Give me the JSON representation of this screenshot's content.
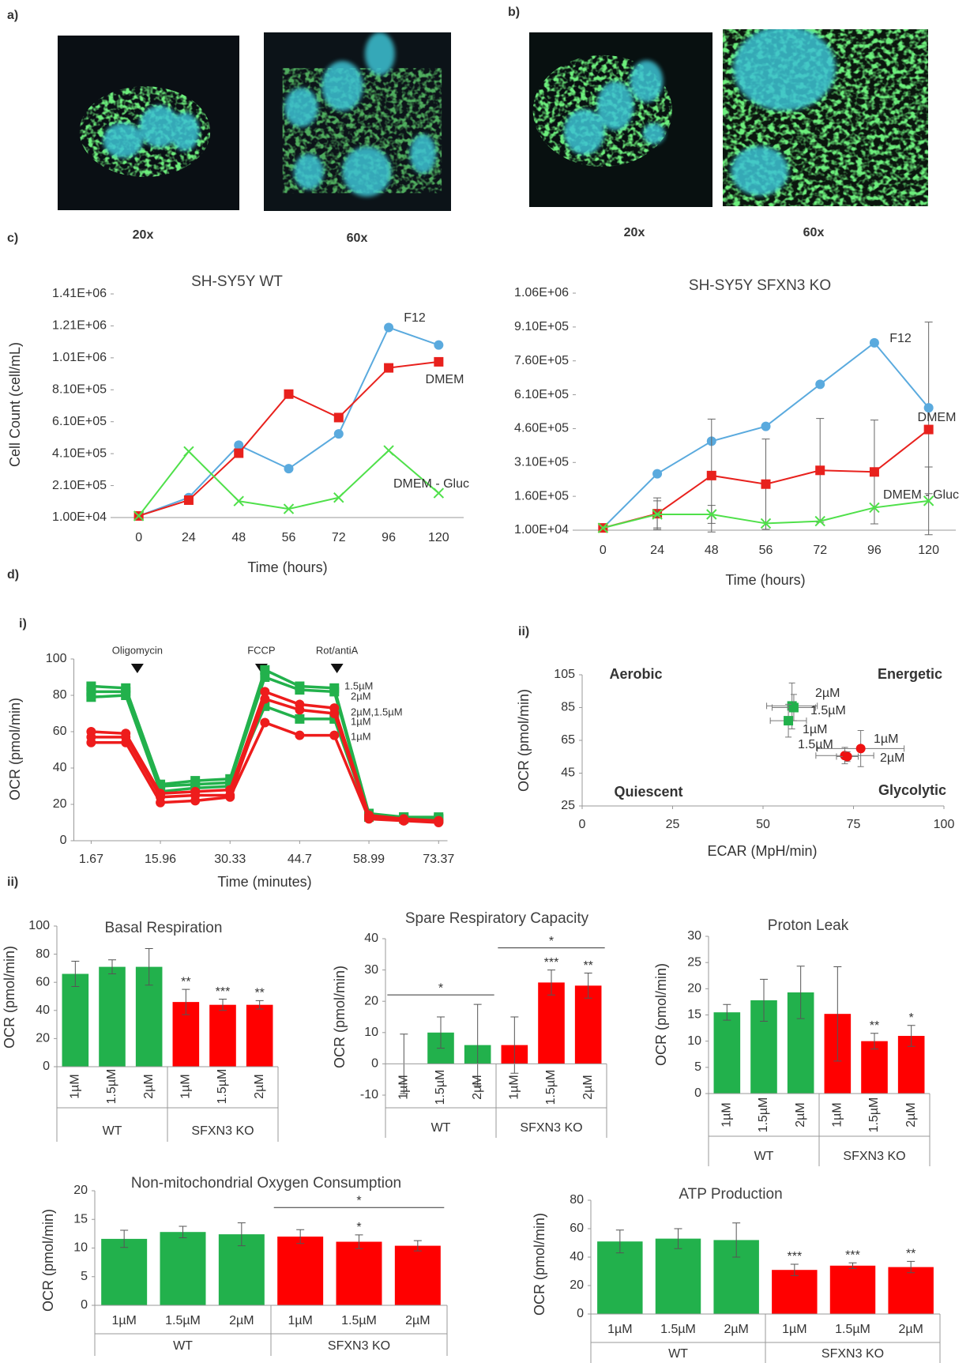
{
  "figure": {
    "panel_labels": [
      "a)",
      "b)",
      "c)",
      "d)",
      "i)",
      "ii)",
      "ii)"
    ],
    "magnifications": [
      "20x",
      "60x",
      "20x",
      "60x"
    ]
  },
  "chart_data": [
    {
      "type": "line",
      "title": "SH-SY5Y WT",
      "xlabel": "Time (hours)",
      "ylabel": "Cell Count (cell/mL)",
      "categories": [
        "0",
        "24",
        "48",
        "56",
        "72",
        "96",
        "120"
      ],
      "ylim": [
        10000,
        1410000
      ],
      "yticks": [
        {
          "value": 10000,
          "label": "1.00E+04"
        },
        {
          "value": 210000,
          "label": "2.10E+05"
        },
        {
          "value": 410000,
          "label": "4.10E+05"
        },
        {
          "value": 610000,
          "label": "6.10E+05"
        },
        {
          "value": 810000,
          "label": "8.10E+05"
        },
        {
          "value": 1010000,
          "label": "1.01E+06"
        },
        {
          "value": 1210000,
          "label": "1.21E+06"
        },
        {
          "value": 1410000,
          "label": "1.41E+06"
        }
      ],
      "series": [
        {
          "name": "F12",
          "color": "#5aaade",
          "marker": "circle",
          "values": [
            20000,
            135000,
            463000,
            316000,
            534000,
            1200000,
            1090000
          ]
        },
        {
          "name": "DMEM",
          "color": "#e8211d",
          "marker": "square",
          "values": [
            20000,
            119000,
            413000,
            783000,
            636000,
            947000,
            985000
          ]
        },
        {
          "name": "DMEM - Gluc",
          "color": "#4fe04a",
          "marker": "x",
          "values": [
            20000,
            424000,
            113000,
            64000,
            135000,
            430000,
            163000
          ]
        }
      ]
    },
    {
      "type": "line",
      "title": "SH-SY5Y SFXN3 KO",
      "xlabel": "Time (hours)",
      "categories": [
        "0",
        "24",
        "48",
        "56",
        "72",
        "96",
        "120"
      ],
      "ylim": [
        10000,
        1060000
      ],
      "yticks": [
        {
          "value": 10000,
          "label": "1.00E+04"
        },
        {
          "value": 160000,
          "label": "1.60E+05"
        },
        {
          "value": 310000,
          "label": "3.10E+05"
        },
        {
          "value": 460000,
          "label": "4.60E+05"
        },
        {
          "value": 610000,
          "label": "6.10E+05"
        },
        {
          "value": 760000,
          "label": "7.60E+05"
        },
        {
          "value": 910000,
          "label": "9.10E+05"
        },
        {
          "value": 1060000,
          "label": "1.06E+06"
        }
      ],
      "series": [
        {
          "name": "F12",
          "color": "#5aaade",
          "marker": "circle",
          "values": [
            20000,
            260000,
            404000,
            470000,
            656000,
            840000,
            552000
          ],
          "errors": [
            null,
            null,
            null,
            null,
            null,
            null,
            380000
          ]
        },
        {
          "name": "DMEM",
          "color": "#e8211d",
          "marker": "square",
          "values": [
            20000,
            83000,
            252000,
            214000,
            275000,
            268000,
            456000
          ],
          "errors": [
            null,
            70000,
            250000,
            200000,
            230000,
            230000,
            null
          ]
        },
        {
          "name": "DMEM - Gluc",
          "color": "#4fe04a",
          "marker": "x",
          "values": [
            20000,
            80000,
            80000,
            40000,
            50000,
            110000,
            140000
          ],
          "errors": [
            null,
            60000,
            40000,
            null,
            null,
            null,
            150000
          ]
        }
      ]
    },
    {
      "type": "line",
      "xlabel": "Time (minutes)",
      "ylabel": "OCR (pmol/min)",
      "x": [
        1.67,
        8.81,
        15.96,
        23.15,
        30.33,
        37.52,
        44.7,
        51.85,
        58.99,
        66.18,
        73.37
      ],
      "xlim": [
        -1.9,
        75.2
      ],
      "xticks": [
        1.67,
        15.96,
        30.33,
        44.7,
        58.99,
        73.37
      ],
      "ylim": [
        0,
        100
      ],
      "yticks": [
        0,
        20,
        40,
        60,
        80,
        100
      ],
      "series": [
        {
          "color": "#22b14c",
          "marker": "square",
          "values": [
            85,
            84,
            31,
            33,
            34,
            94,
            85,
            84,
            15,
            13,
            13
          ]
        },
        {
          "color": "#22b14c",
          "marker": "square",
          "values": [
            82,
            82,
            30,
            31,
            32,
            90,
            83,
            82,
            14,
            13,
            12
          ]
        },
        {
          "color": "#22b14c",
          "marker": "square",
          "values": [
            79,
            80,
            27,
            29,
            30,
            74,
            67,
            67,
            13,
            12,
            12
          ]
        },
        {
          "color": "#ee1c1c",
          "marker": "circle",
          "values": [
            60,
            59,
            26,
            27,
            28,
            82,
            75,
            73,
            14,
            12,
            11
          ]
        },
        {
          "color": "#ee1c1c",
          "marker": "circle",
          "values": [
            57,
            57,
            24,
            25,
            25,
            78,
            72,
            70,
            13,
            11,
            11
          ]
        },
        {
          "color": "#ee1c1c",
          "marker": "circle",
          "values": [
            54,
            54,
            21,
            22,
            24,
            65,
            58,
            58,
            12,
            11,
            10
          ]
        }
      ],
      "injections": [
        {
          "label": "Oligomycin",
          "x": 11.2
        },
        {
          "label": "FCCP",
          "x": 36.8
        },
        {
          "label": "Rot/antiA",
          "x": 52.4
        }
      ],
      "annotations": [
        "1.5µM",
        "2µM",
        "2µM,1.5µM",
        "1µM",
        "1µM"
      ]
    },
    {
      "type": "scatter",
      "xlabel": "ECAR (MpH/min)",
      "ylabel": "OCR (pmol/min)",
      "xlim": [
        0,
        100
      ],
      "xticks": [
        0,
        25,
        50,
        75,
        100
      ],
      "ylim": [
        25,
        105
      ],
      "yticks": [
        25,
        45,
        65,
        85,
        105
      ],
      "quadrant_labels": [
        "Aerobic",
        "Energetic",
        "Quiescent",
        "Glycolytic"
      ],
      "series": [
        {
          "color": "#22b14c",
          "marker": "square",
          "labels": [
            "2µM",
            "1.5µM",
            "1µM"
          ],
          "x": [
            58,
            58.5,
            57
          ],
          "y": [
            86,
            85,
            77
          ],
          "xerr": [
            7,
            6,
            5
          ],
          "yerr": [
            14,
            8,
            10
          ]
        },
        {
          "color": "#ee1111",
          "marker": "circle",
          "labels": [
            "1µM",
            "1.5µM",
            "2µM"
          ],
          "x": [
            77,
            72.6,
            73.3
          ],
          "y": [
            60,
            55.7,
            55.1
          ],
          "xerr": [
            12,
            8,
            3
          ],
          "yerr": [
            11,
            5,
            3
          ]
        }
      ]
    },
    {
      "type": "bar",
      "title": "Basal Respiration",
      "ylabel": "OCR (pmol/min)",
      "rotated_labels": true,
      "categories": [
        "1µM",
        "1.5µM",
        "2µM",
        "1µM",
        "1.5µM",
        "2µM"
      ],
      "groups": [
        {
          "label": "WT",
          "color": "#22b14c"
        },
        {
          "label": "SFXN3 KO",
          "color": "#ff0000"
        }
      ],
      "values": [
        66,
        71,
        71,
        46,
        44,
        44
      ],
      "errors": [
        9,
        5,
        13,
        9,
        4,
        3
      ],
      "stars": [
        null,
        null,
        null,
        "**",
        "***",
        "**"
      ],
      "brackets": [],
      "ylim": [
        0,
        100
      ],
      "yticks": [
        0,
        20,
        40,
        60,
        80,
        100
      ]
    },
    {
      "type": "bar",
      "title": "Spare Respiratory Capacity",
      "ylabel": "OCR (pmol/min)",
      "rotated_labels": true,
      "categories": [
        "1µM",
        "1.5µM",
        "2µM",
        "1µM",
        "1.5µM",
        "2µM"
      ],
      "groups": [
        {
          "label": "WT",
          "color": "#22b14c"
        },
        {
          "label": "SFXN3 KO",
          "color": "#ff0000"
        }
      ],
      "values": [
        0,
        10,
        6,
        6,
        26,
        25
      ],
      "errors": [
        9.5,
        5,
        13,
        9,
        4,
        4
      ],
      "stars": [
        null,
        null,
        null,
        null,
        "***",
        "**"
      ],
      "brackets": [
        {
          "from": 0,
          "to": 2,
          "label": "*"
        },
        {
          "from": 3,
          "to": 5,
          "label": "*"
        }
      ],
      "ylim": [
        -10,
        40
      ],
      "yticks": [
        -10,
        0,
        10,
        20,
        30,
        40
      ]
    },
    {
      "type": "bar",
      "title": "Proton Leak",
      "ylabel": "OCR (pmol/min)",
      "rotated_labels": true,
      "categories": [
        "1µM",
        "1.5µM",
        "2µM",
        "1µM",
        "1.5µM",
        "2µM"
      ],
      "groups": [
        {
          "label": "WT",
          "color": "#22b14c"
        },
        {
          "label": "SFXN3 KO",
          "color": "#ff0000"
        }
      ],
      "values": [
        15.5,
        17.8,
        19.3,
        15.2,
        10,
        11
      ],
      "errors": [
        1.5,
        4,
        5,
        9,
        1.5,
        2
      ],
      "stars": [
        null,
        null,
        null,
        null,
        "**",
        "*"
      ],
      "brackets": [],
      "ylim": [
        0,
        30
      ],
      "yticks": [
        0,
        5,
        10,
        15,
        20,
        25,
        30
      ]
    },
    {
      "type": "bar",
      "title": "Non-mitochondrial Oxygen Consumption",
      "ylabel": "OCR (pmol/min)",
      "rotated_labels": false,
      "categories": [
        "1µM",
        "1.5µM",
        "2µM",
        "1µM",
        "1.5µM",
        "2µM"
      ],
      "groups": [
        {
          "label": "WT",
          "color": "#22b14c"
        },
        {
          "label": "SFXN3 KO",
          "color": "#ff0000"
        }
      ],
      "values": [
        11.6,
        12.8,
        12.4,
        12,
        11.1,
        10.4
      ],
      "errors": [
        1.5,
        1,
        2,
        1.2,
        1.2,
        0.9
      ],
      "stars": [
        null,
        null,
        null,
        null,
        "*",
        null
      ],
      "brackets": [
        {
          "from": 3,
          "to": 5,
          "label": "*"
        }
      ],
      "ylim": [
        0,
        20
      ],
      "yticks": [
        0,
        5,
        10,
        15,
        20
      ]
    },
    {
      "type": "bar",
      "title": "ATP Production",
      "ylabel": "OCR (pmol/min)",
      "rotated_labels": false,
      "categories": [
        "1µM",
        "1.5µM",
        "2µM",
        "1µM",
        "1.5µM",
        "2µM"
      ],
      "groups": [
        {
          "label": "WT",
          "color": "#22b14c"
        },
        {
          "label": "SFXN3 KO",
          "color": "#ff0000"
        }
      ],
      "values": [
        51,
        53,
        52,
        31,
        34,
        33
      ],
      "errors": [
        8,
        7,
        12,
        4,
        2,
        4
      ],
      "stars": [
        null,
        null,
        null,
        "***",
        "***",
        "**"
      ],
      "brackets": [],
      "ylim": [
        0,
        80
      ],
      "yticks": [
        0,
        20,
        40,
        60,
        80
      ]
    }
  ]
}
